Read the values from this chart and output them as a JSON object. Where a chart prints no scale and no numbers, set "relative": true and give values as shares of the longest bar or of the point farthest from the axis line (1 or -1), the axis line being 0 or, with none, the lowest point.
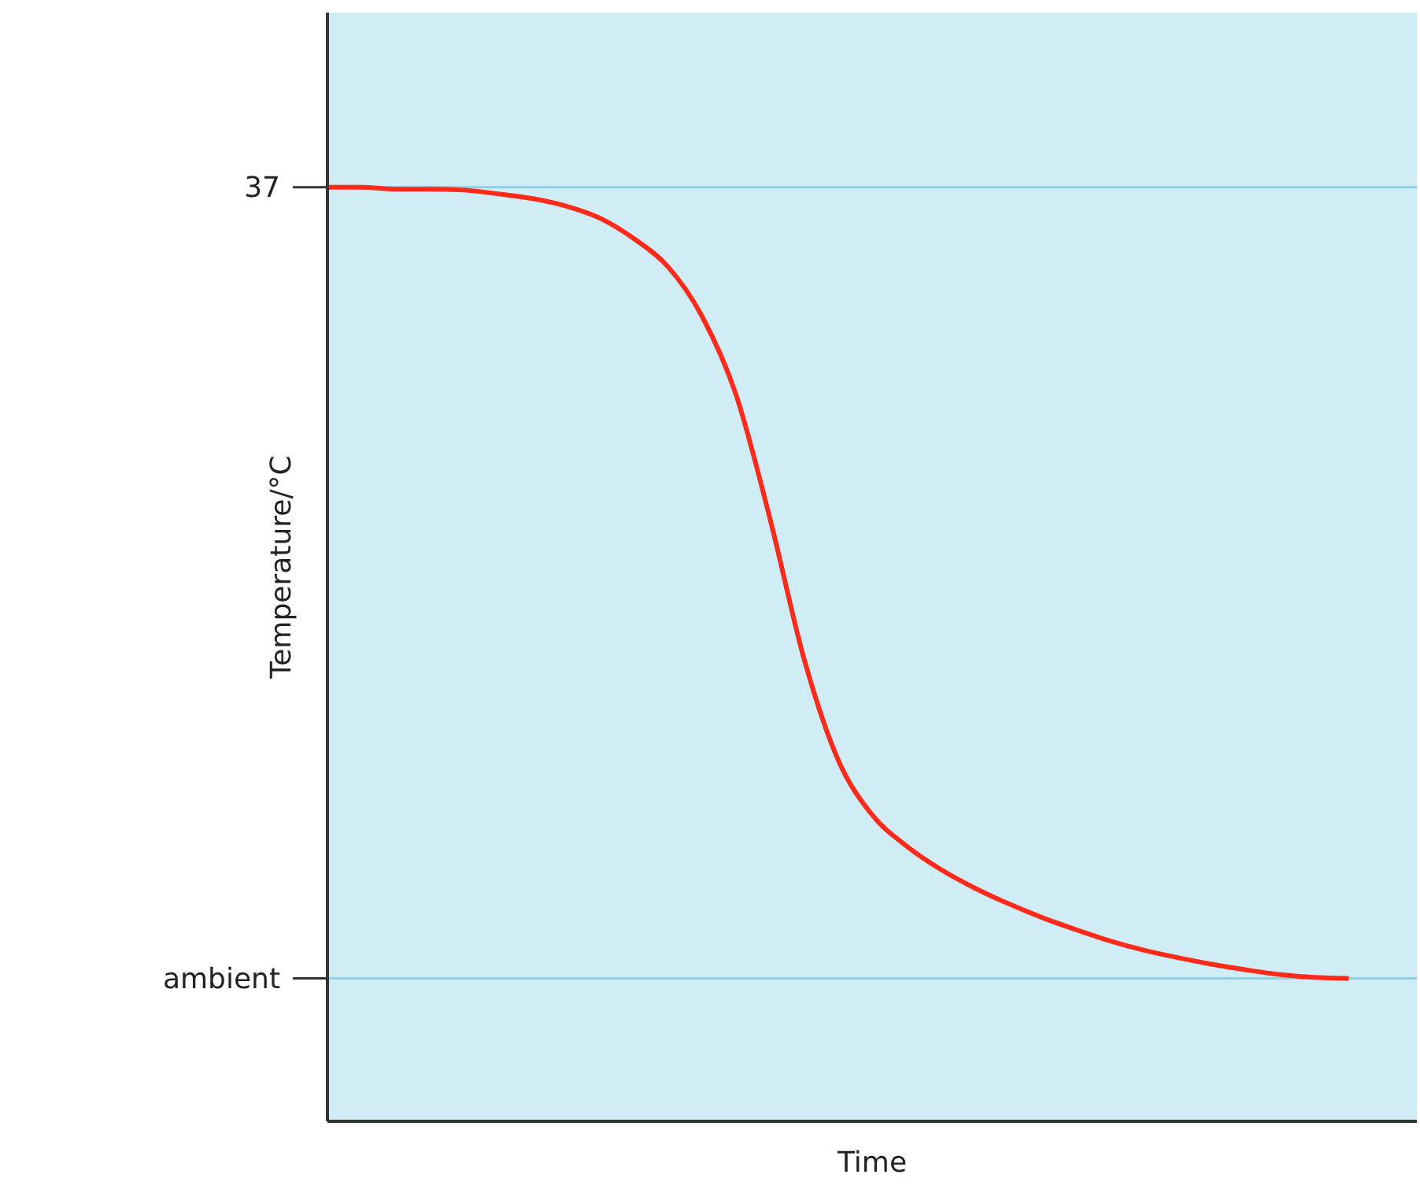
{
  "chart_data": {
    "type": "line",
    "relative": true,
    "xlabel": "Time",
    "ylabel": "Temperature/°C",
    "categories": [
      null,
      null,
      null,
      null,
      null,
      null,
      null,
      null,
      null,
      null,
      null,
      null,
      null,
      null,
      null,
      null,
      null,
      null,
      null,
      null,
      null,
      null,
      null,
      null,
      null,
      null,
      null,
      null,
      null,
      null,
      null,
      null,
      null
    ],
    "series": [
      {
        "color": "#ff2a1a",
        "values": [
          1.0,
          1.0,
          0.998,
          0.998,
          0.997,
          0.993,
          0.988,
          0.98,
          0.967,
          0.945,
          0.915,
          0.862,
          0.778,
          0.645,
          0.495,
          0.387,
          0.328,
          0.295,
          0.27,
          0.25,
          0.233,
          0.218,
          0.205,
          0.193,
          0.183,
          0.175,
          0.168,
          0.162,
          0.157,
          0.154,
          0.153,
          null,
          null
        ]
      }
    ],
    "ref_lines": [
      {
        "axis": "y",
        "value": 1.0,
        "color": "#8ecfe0"
      },
      {
        "axis": "y",
        "value": 0.153,
        "color": "#8ecfe0"
      }
    ],
    "annotations": [
      "37",
      "ambient"
    ],
    "marker": "none",
    "line_style": "solid"
  }
}
